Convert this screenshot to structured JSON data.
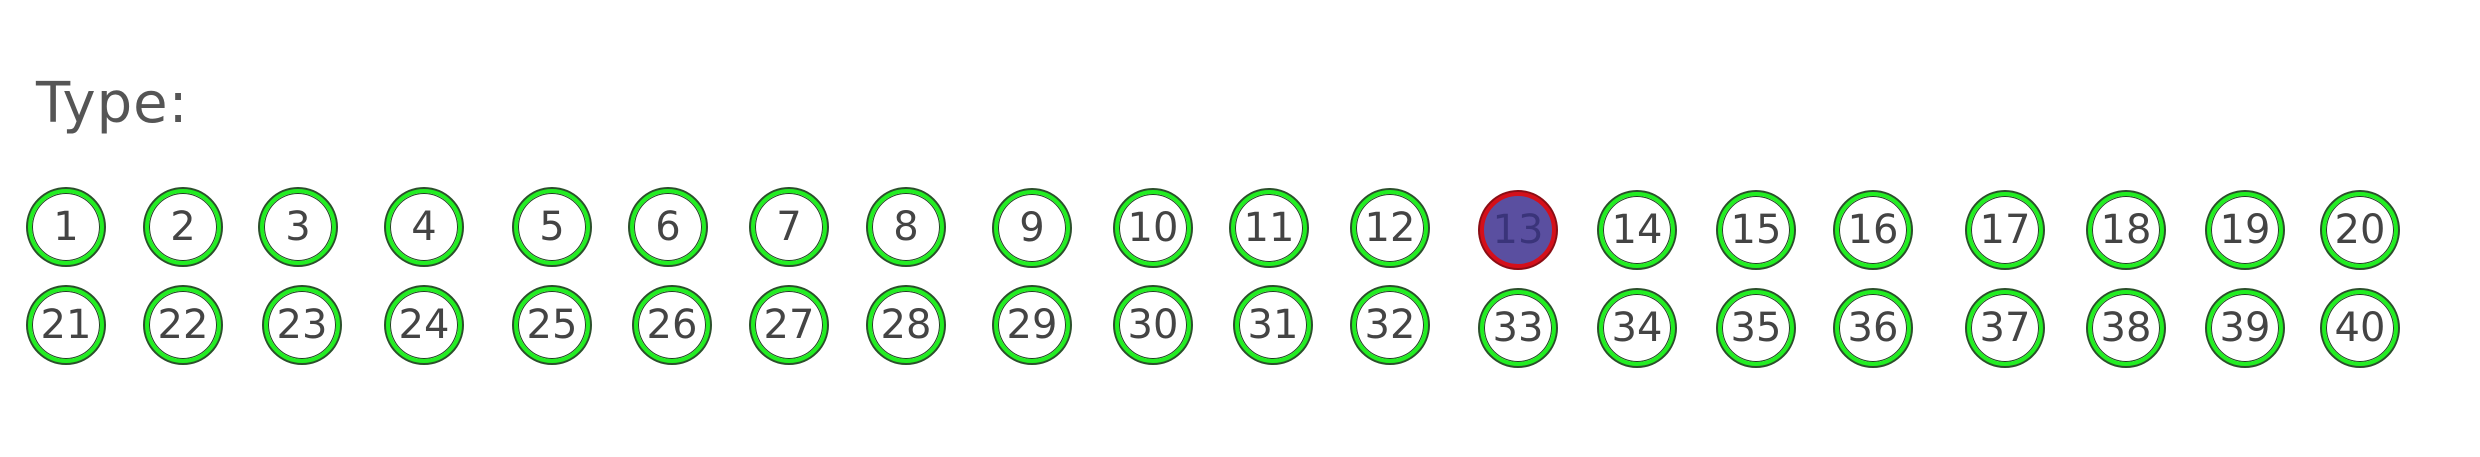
{
  "form": {
    "label": "Type:"
  },
  "bubbles": {
    "row1": [
      "1",
      "2",
      "3",
      "4",
      "5",
      "6",
      "7",
      "8",
      "9",
      "10",
      "11",
      "12",
      "13",
      "14",
      "15",
      "16",
      "17",
      "18",
      "19",
      "20"
    ],
    "row2": [
      "21",
      "22",
      "23",
      "24",
      "25",
      "26",
      "27",
      "28",
      "29",
      "30",
      "31",
      "32",
      "33",
      "34",
      "35",
      "36",
      "37",
      "38",
      "39",
      "40"
    ]
  },
  "selected": "13",
  "colors": {
    "ring": "#22ee22",
    "selected_fill": "#5a4fa0",
    "selected_ring": "#d40f1a",
    "text": "#444444"
  }
}
